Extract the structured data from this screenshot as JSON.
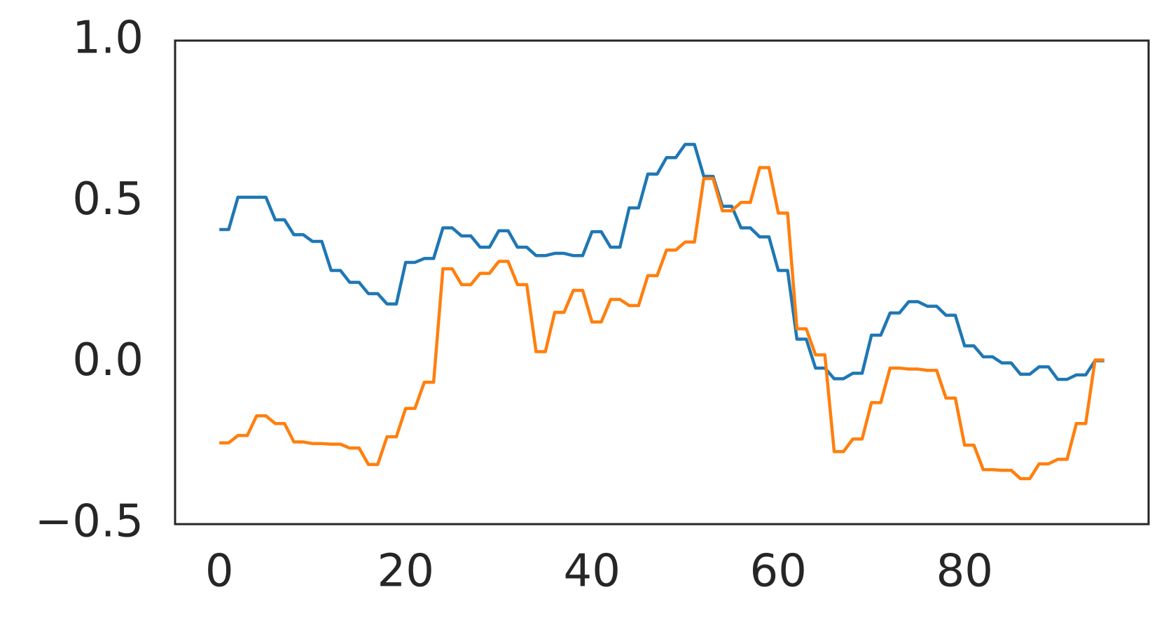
{
  "chart_data": {
    "type": "line",
    "x": [
      0,
      1,
      2,
      3,
      4,
      5,
      6,
      7,
      8,
      9,
      10,
      11,
      12,
      13,
      14,
      15,
      16,
      17,
      18,
      19,
      20,
      21,
      22,
      23,
      24,
      25,
      26,
      27,
      28,
      29,
      30,
      31,
      32,
      33,
      34,
      35,
      36,
      37,
      38,
      39,
      40,
      41,
      42,
      43,
      44,
      45,
      46,
      47,
      48,
      49,
      50,
      51,
      52,
      53,
      54,
      55,
      56,
      57,
      58,
      59,
      60,
      61,
      62,
      63,
      64,
      65,
      66,
      67,
      68,
      69,
      70,
      71,
      72,
      73,
      74,
      75,
      76,
      77,
      78,
      79,
      80,
      81,
      82,
      83,
      84,
      85,
      86,
      87,
      88,
      89,
      90,
      91,
      92,
      93,
      94,
      95
    ],
    "series": [
      {
        "color": "#1f77b4",
        "values": [
          0.414,
          0.414,
          0.514,
          0.514,
          0.514,
          0.514,
          0.444,
          0.444,
          0.398,
          0.398,
          0.377,
          0.377,
          0.287,
          0.287,
          0.25,
          0.25,
          0.215,
          0.215,
          0.183,
          0.183,
          0.312,
          0.312,
          0.324,
          0.324,
          0.419,
          0.419,
          0.394,
          0.394,
          0.359,
          0.359,
          0.41,
          0.41,
          0.359,
          0.359,
          0.333,
          0.333,
          0.34,
          0.34,
          0.333,
          0.333,
          0.407,
          0.407,
          0.359,
          0.359,
          0.481,
          0.481,
          0.586,
          0.586,
          0.637,
          0.637,
          0.678,
          0.678,
          0.579,
          0.579,
          0.486,
          0.486,
          0.419,
          0.419,
          0.391,
          0.391,
          0.287,
          0.287,
          0.074,
          0.074,
          -0.016,
          -0.016,
          -0.049,
          -0.049,
          -0.032,
          -0.032,
          0.086,
          0.086,
          0.155,
          0.155,
          0.19,
          0.19,
          0.176,
          0.176,
          0.148,
          0.148,
          0.053,
          0.053,
          0.019,
          0.019,
          0.0,
          0.0,
          -0.035,
          -0.035,
          -0.012,
          -0.012,
          -0.051,
          -0.051,
          -0.037,
          -0.037,
          0.007,
          0.007
        ]
      },
      {
        "color": "#ff7f0e",
        "values": [
          -0.248,
          -0.248,
          -0.225,
          -0.225,
          -0.164,
          -0.164,
          -0.188,
          -0.188,
          -0.245,
          -0.245,
          -0.25,
          -0.25,
          -0.252,
          -0.252,
          -0.264,
          -0.264,
          -0.315,
          -0.315,
          -0.229,
          -0.229,
          -0.141,
          -0.141,
          -0.06,
          -0.06,
          0.292,
          0.292,
          0.243,
          0.243,
          0.278,
          0.278,
          0.315,
          0.315,
          0.243,
          0.243,
          0.035,
          0.035,
          0.157,
          0.157,
          0.225,
          0.225,
          0.127,
          0.127,
          0.197,
          0.197,
          0.178,
          0.178,
          0.271,
          0.271,
          0.35,
          0.35,
          0.375,
          0.375,
          0.572,
          0.572,
          0.472,
          0.472,
          0.498,
          0.498,
          0.606,
          0.606,
          0.465,
          0.465,
          0.106,
          0.106,
          0.025,
          0.025,
          -0.275,
          -0.275,
          -0.236,
          -0.236,
          -0.123,
          -0.123,
          -0.016,
          -0.016,
          -0.019,
          -0.019,
          -0.023,
          -0.023,
          -0.109,
          -0.109,
          -0.255,
          -0.255,
          -0.331,
          -0.331,
          -0.333,
          -0.333,
          -0.359,
          -0.359,
          -0.313,
          -0.313,
          -0.299,
          -0.299,
          -0.188,
          -0.188,
          0.009,
          0.009
        ]
      }
    ],
    "xlim": [
      -4.75,
      99.75
    ],
    "ylim": [
      -0.5,
      1.0
    ],
    "xticks": [
      0,
      20,
      40,
      60,
      80
    ],
    "yticks": [
      {
        "value": -0.5,
        "label": "−0.5"
      },
      {
        "value": 0.0,
        "label": "0.0"
      },
      {
        "value": 0.5,
        "label": "0.5"
      },
      {
        "value": 1.0,
        "label": "1.0"
      }
    ]
  }
}
